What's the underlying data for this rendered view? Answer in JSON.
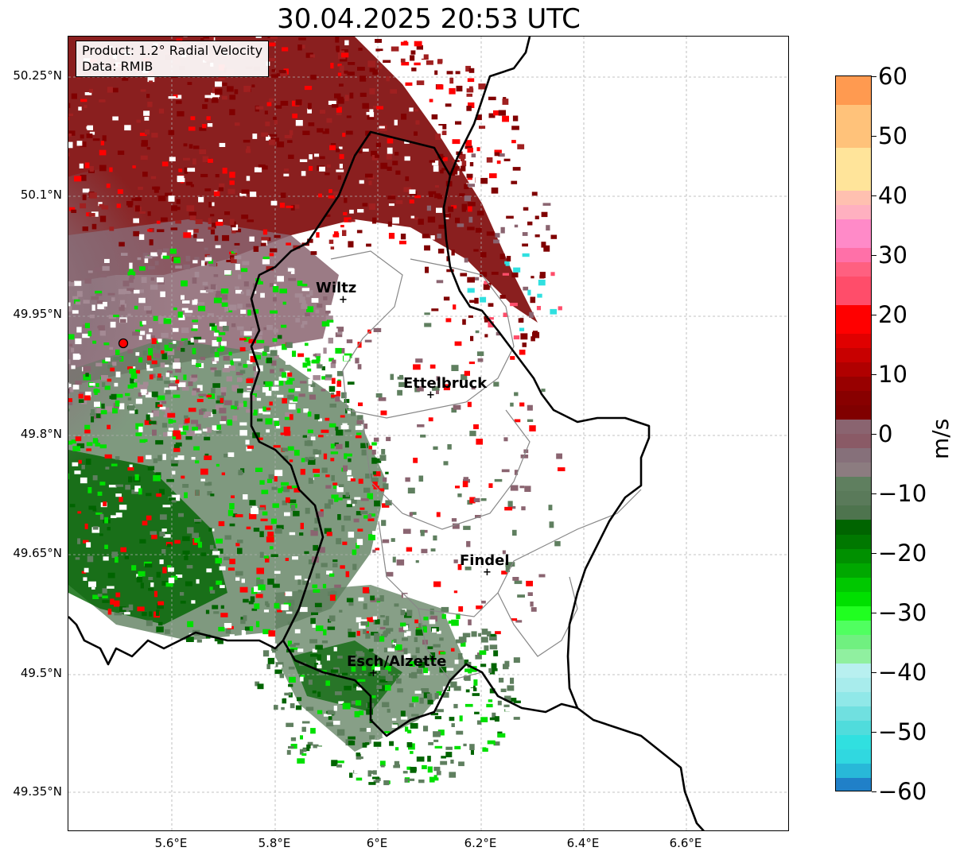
{
  "title": "30.04.2025 20:53 UTC",
  "info": {
    "product": "Product: 1.2° Radial Velocity",
    "data": "Data: RMIB"
  },
  "lat_labels": [
    "50.25°N",
    "50.1°N",
    "49.95°N",
    "49.8°N",
    "49.65°N",
    "49.5°N",
    "49.35°N"
  ],
  "lon_labels": [
    "5.6°E",
    "5.8°E",
    "6°E",
    "6.2°E",
    "6.4°E",
    "6.6°E"
  ],
  "cities": [
    {
      "name": "Wiltz"
    },
    {
      "name": "Ettelbruck"
    },
    {
      "name": "Findel"
    },
    {
      "name": "Esch/Alzette"
    }
  ],
  "colorbar": {
    "label": "m/s",
    "ticks": [
      "60",
      "50",
      "40",
      "30",
      "20",
      "10",
      "0",
      "−10",
      "−20",
      "−30",
      "−40",
      "−50",
      "−60"
    ],
    "colors": {
      "pos_high": "#ff9a50",
      "pos_orange": "#ffc27a",
      "pos_yellow": "#ffe49a",
      "pos_pink": "#ff8ac8",
      "pos_red_light": "#ff4d6a",
      "pos_red": "#ff0000",
      "pos_darkred": "#800000",
      "near_zero_pos": "#8a6470",
      "near_zero_neg": "#5f7f5f",
      "neg_darkgreen": "#006400",
      "neg_green": "#00e000",
      "neg_lightgreen": "#90f0a0",
      "neg_cyan": "#30e0e0",
      "neg_blue": "#2080c8"
    }
  },
  "radar_site_color": "#ff0000"
}
